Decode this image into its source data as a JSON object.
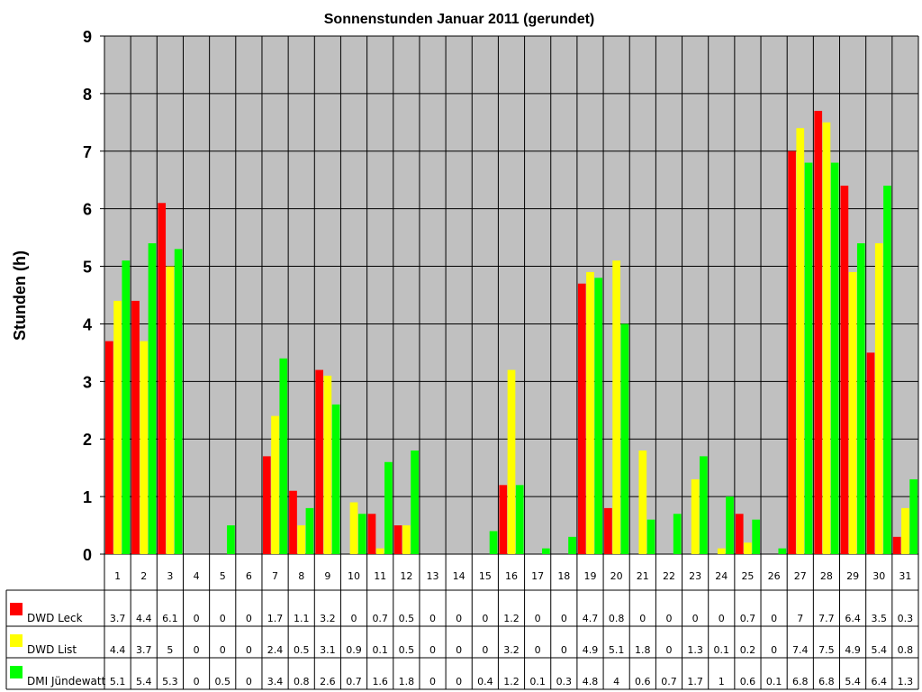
{
  "chart_data": {
    "type": "bar",
    "title": "Sonnenstunden Januar 2011 (gerundet)",
    "xlabel": "",
    "ylabel": "Stunden (h)",
    "ylim": [
      0,
      9
    ],
    "yticks": [
      "0",
      "1",
      "2",
      "3",
      "4",
      "5",
      "6",
      "7",
      "8",
      "9"
    ],
    "grid": true,
    "legend": "data-table-left",
    "categories": [
      "1",
      "2",
      "3",
      "4",
      "5",
      "6",
      "7",
      "8",
      "9",
      "10",
      "11",
      "12",
      "13",
      "14",
      "15",
      "16",
      "17",
      "18",
      "19",
      "20",
      "21",
      "22",
      "23",
      "24",
      "25",
      "26",
      "27",
      "28",
      "29",
      "30",
      "31"
    ],
    "series": [
      {
        "name": "DWD Leck",
        "color": "#FF0000",
        "values": [
          3.7,
          4.4,
          6.1,
          0,
          0,
          0,
          1.7,
          1.1,
          3.2,
          0,
          0.7,
          0.5,
          0,
          0,
          0,
          1.2,
          0,
          0,
          4.7,
          0.8,
          0,
          0,
          0,
          0,
          0.7,
          0,
          7,
          7.7,
          6.4,
          3.5,
          0.3
        ]
      },
      {
        "name": "DWD List",
        "color": "#FFFF00",
        "values": [
          4.4,
          3.7,
          5,
          0,
          0,
          0,
          2.4,
          0.5,
          3.1,
          0.9,
          0.1,
          0.5,
          0,
          0,
          0,
          3.2,
          0,
          0,
          4.9,
          5.1,
          1.8,
          0,
          1.3,
          0.1,
          0.2,
          0,
          7.4,
          7.5,
          4.9,
          5.4,
          0.8
        ]
      },
      {
        "name": "DMI Jündewatt",
        "color": "#00FF00",
        "values": [
          5.1,
          5.4,
          5.3,
          0,
          0.5,
          0,
          3.4,
          0.8,
          2.6,
          0.7,
          1.6,
          1.8,
          0,
          0,
          0.4,
          1.2,
          0.1,
          0.3,
          4.8,
          4,
          0.6,
          0.7,
          1.7,
          1,
          0.6,
          0.1,
          6.8,
          6.8,
          5.4,
          6.4,
          1.3
        ]
      }
    ],
    "plot_background": "#C0C0C0"
  }
}
